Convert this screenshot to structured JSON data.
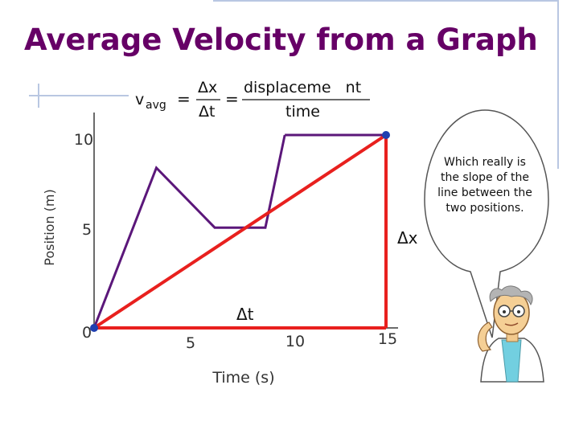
{
  "slide": {
    "title": "Average Velocity from a Graph",
    "formula": {
      "v": "v",
      "avg": "avg",
      "equals": "=",
      "dx": "Δx",
      "dt": "Δt",
      "numerator": "displaceme   nt",
      "denominator": "time"
    },
    "bubble_text": "Which really is the slope of the line between the two positions.",
    "labels": {
      "delta_x": "Δx",
      "delta_t": "Δt"
    },
    "colors": {
      "title": "#660066",
      "path_line": "#5b177a",
      "slope_line": "#e8201e",
      "point": "#1f3fb0",
      "accent_lines": "#b9c7e2"
    }
  },
  "chart_data": {
    "type": "line",
    "xlabel": "Time (s)",
    "ylabel": "Position (m)",
    "x_ticks": [
      "5",
      "10",
      "15"
    ],
    "y_ticks": [
      "0",
      "5",
      "10"
    ],
    "xlim": [
      0,
      16
    ],
    "ylim": [
      0,
      10
    ],
    "series": [
      {
        "x": [
          0,
          3.2,
          6.2,
          8.8,
          9.8,
          9.8
        ],
        "y": [
          0,
          8.3,
          5.2,
          5.2,
          10,
          10
        ]
      },
      {
        "x": [
          0,
          15
        ],
        "y": [
          0,
          10
        ]
      }
    ],
    "endpoints": [
      {
        "x": 0,
        "y": 0
      },
      {
        "x": 15,
        "y": 10
      }
    ]
  }
}
